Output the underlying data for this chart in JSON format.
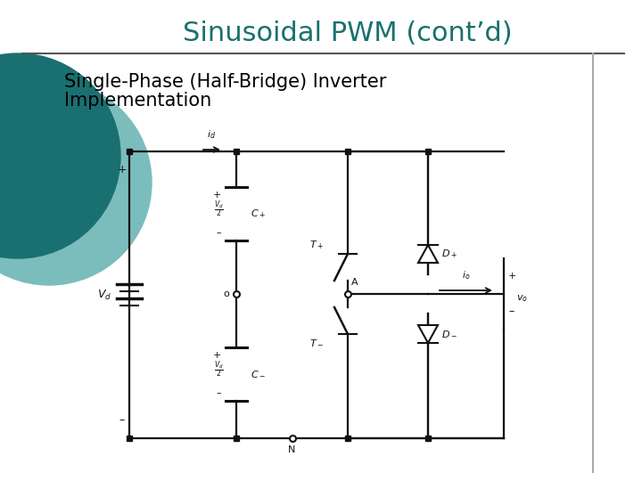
{
  "title": "Sinusoidal PWM (cont’d)",
  "title_color": "#1A7070",
  "subtitle_line1": "Single-Phase (Half-Bridge) Inverter",
  "subtitle_line2": "Implementation",
  "subtitle_color": "#000000",
  "bg_color": "#FFFFFF",
  "circle1_color": "#1A7070",
  "circle2_color": "#7BBCBC",
  "title_fontsize": 22,
  "subtitle_fontsize": 15,
  "fig_width": 7.2,
  "fig_height": 5.4,
  "lc": "#111111",
  "lw": 1.6
}
